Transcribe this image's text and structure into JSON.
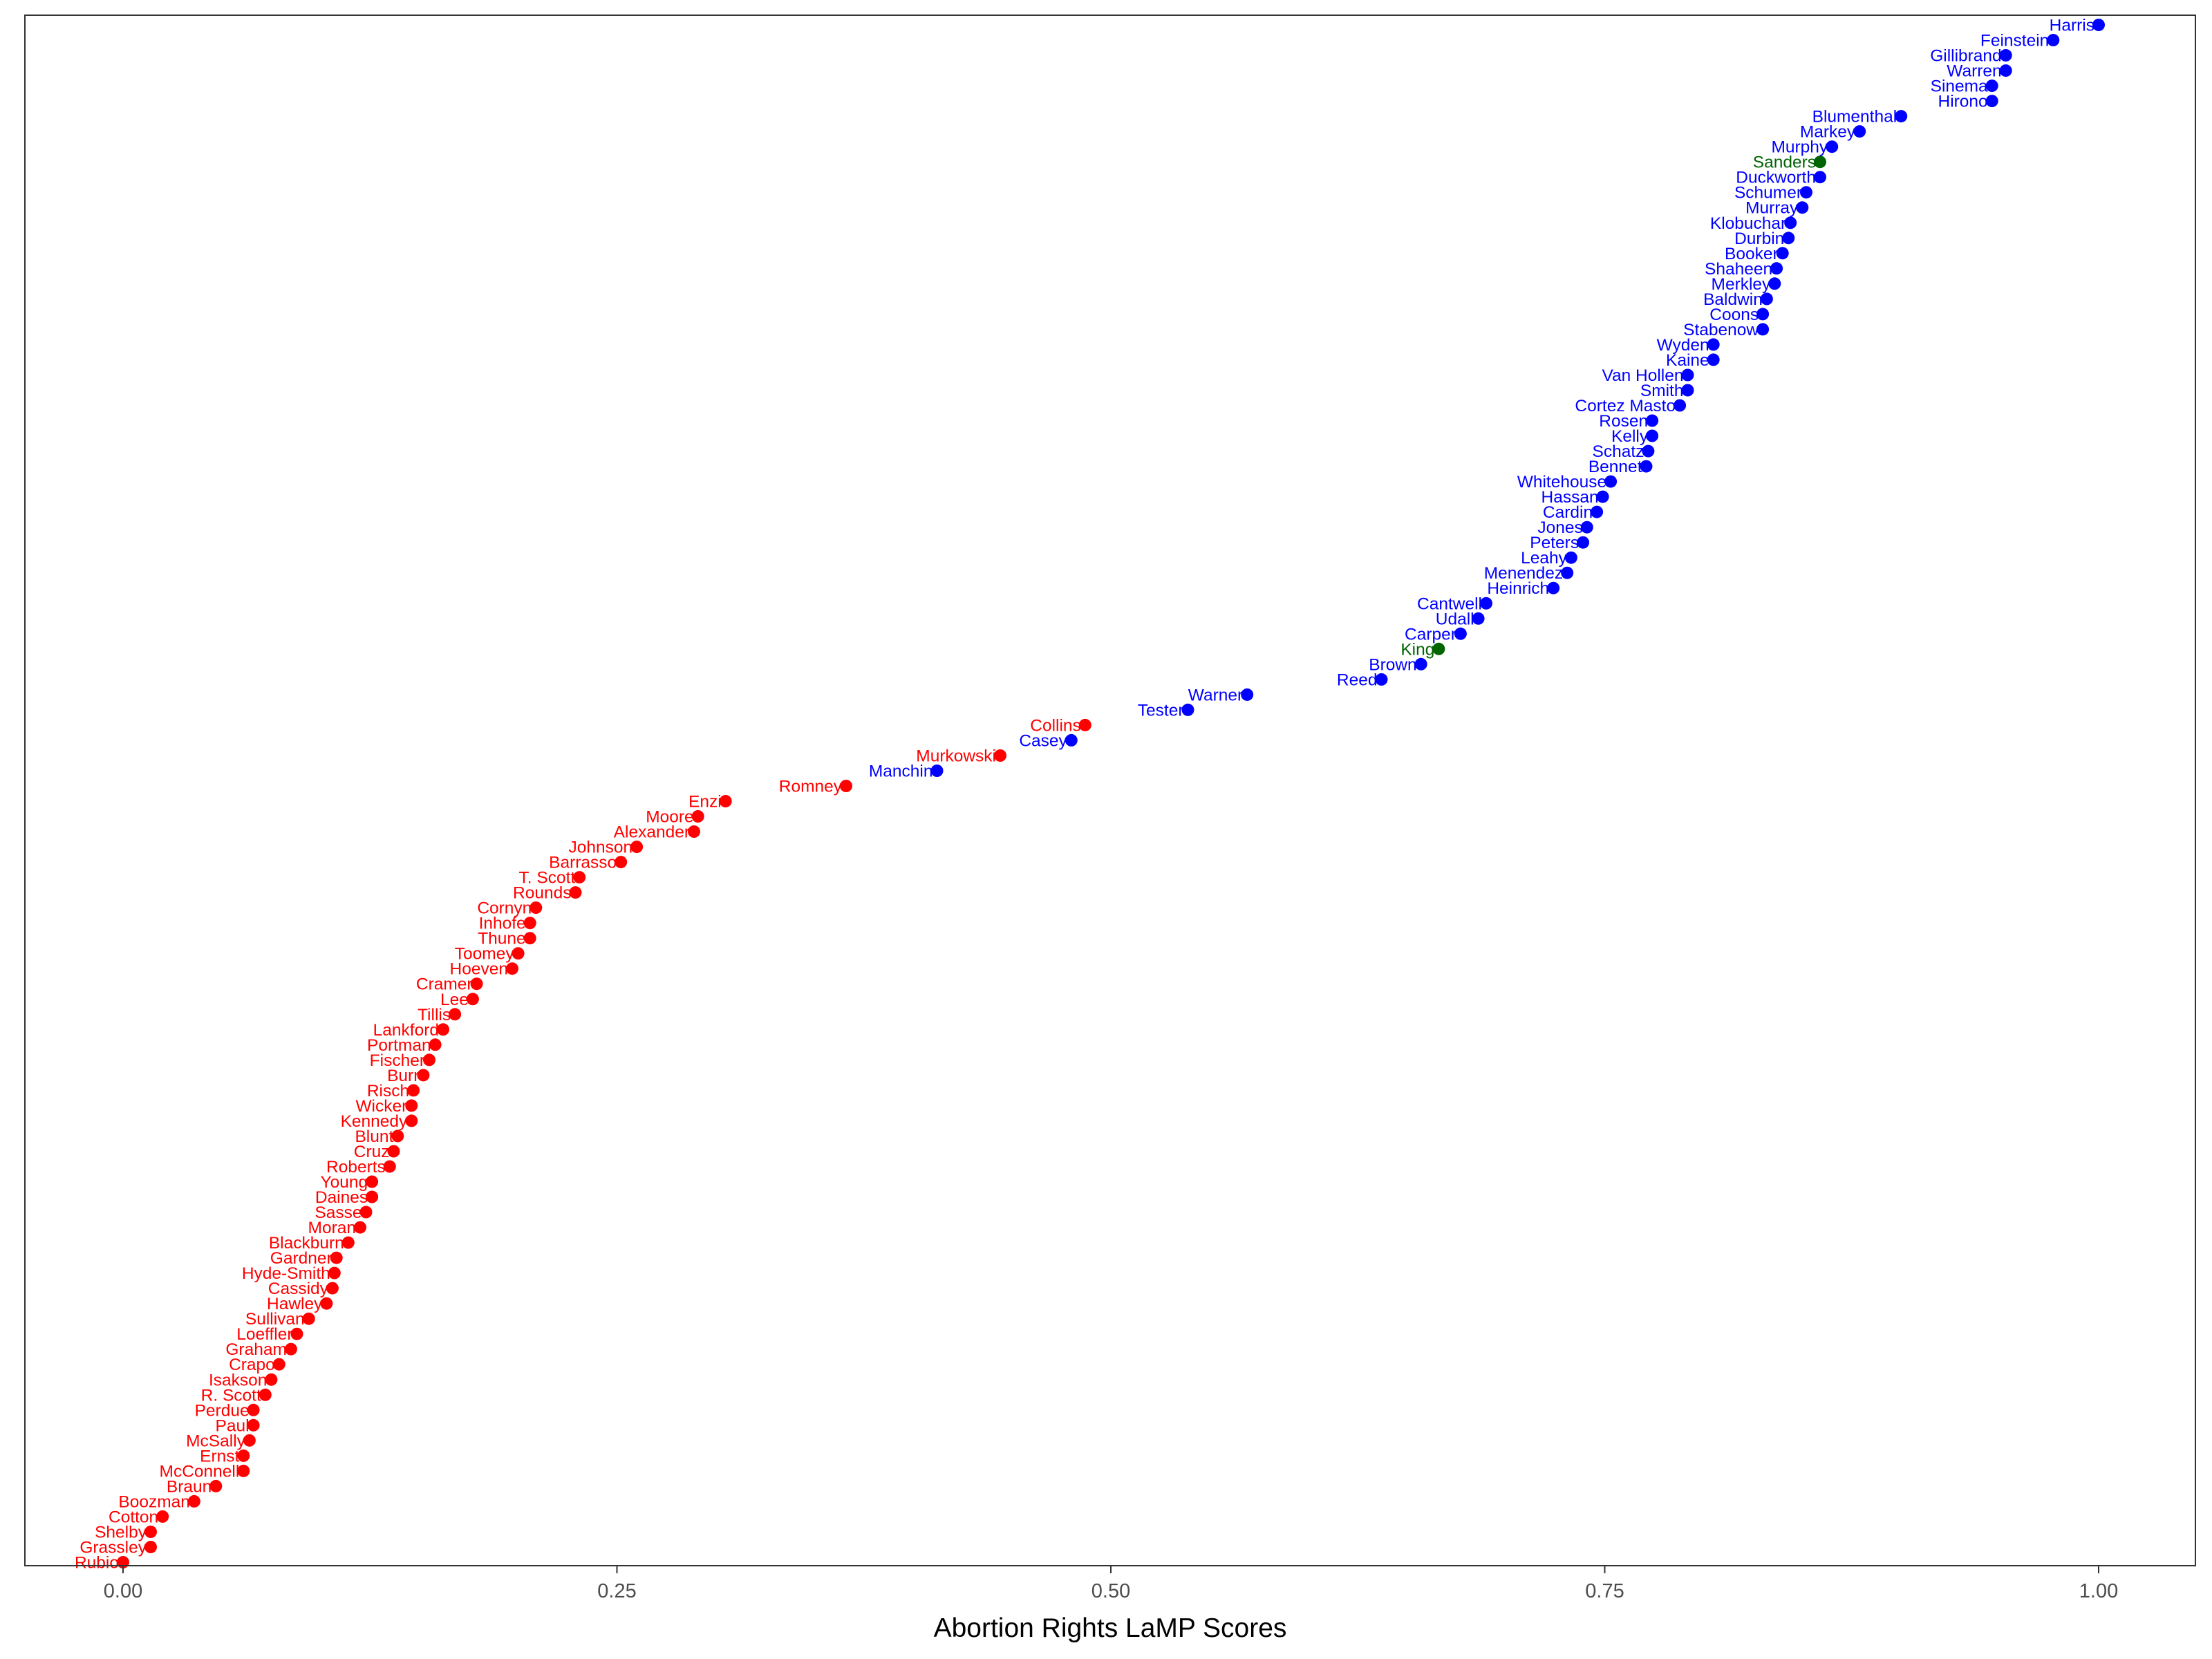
{
  "chart_data": {
    "type": "scatter",
    "xlabel": "Abortion Rights LaMP Scores",
    "xlim": [
      -0.03,
      1.05
    ],
    "xticks": [
      {
        "value": 0.0,
        "label": "0.00"
      },
      {
        "value": 0.25,
        "label": "0.25"
      },
      {
        "value": 0.5,
        "label": "0.50"
      },
      {
        "value": 0.75,
        "label": "0.75"
      },
      {
        "value": 1.0,
        "label": "1.00"
      }
    ],
    "grid": false,
    "legend": "none",
    "party_colors": {
      "D": "#0000ff",
      "R": "#ff0000",
      "I": "#006400"
    },
    "points": [
      {
        "name": "Harris",
        "x": 1.0,
        "party": "D"
      },
      {
        "name": "Feinstein",
        "x": 0.977,
        "party": "D"
      },
      {
        "name": "Gillibrand",
        "x": 0.953,
        "party": "D"
      },
      {
        "name": "Warren",
        "x": 0.953,
        "party": "D"
      },
      {
        "name": "Sinema",
        "x": 0.946,
        "party": "D"
      },
      {
        "name": "Hirono",
        "x": 0.946,
        "party": "D"
      },
      {
        "name": "Blumenthal",
        "x": 0.9,
        "party": "D"
      },
      {
        "name": "Markey",
        "x": 0.879,
        "party": "D"
      },
      {
        "name": "Murphy",
        "x": 0.865,
        "party": "D"
      },
      {
        "name": "Sanders",
        "x": 0.859,
        "party": "I"
      },
      {
        "name": "Duckworth",
        "x": 0.859,
        "party": "D"
      },
      {
        "name": "Schumer",
        "x": 0.852,
        "party": "D"
      },
      {
        "name": "Murray",
        "x": 0.85,
        "party": "D"
      },
      {
        "name": "Klobuchar",
        "x": 0.844,
        "party": "D"
      },
      {
        "name": "Durbin",
        "x": 0.843,
        "party": "D"
      },
      {
        "name": "Booker",
        "x": 0.84,
        "party": "D"
      },
      {
        "name": "Shaheen",
        "x": 0.837,
        "party": "D"
      },
      {
        "name": "Merkley",
        "x": 0.836,
        "party": "D"
      },
      {
        "name": "Baldwin",
        "x": 0.832,
        "party": "D"
      },
      {
        "name": "Coons",
        "x": 0.83,
        "party": "D"
      },
      {
        "name": "Stabenow",
        "x": 0.83,
        "party": "D"
      },
      {
        "name": "Wyden",
        "x": 0.805,
        "party": "D"
      },
      {
        "name": "Kaine",
        "x": 0.805,
        "party": "D"
      },
      {
        "name": "Van Hollen",
        "x": 0.792,
        "party": "D"
      },
      {
        "name": "Smith",
        "x": 0.792,
        "party": "D"
      },
      {
        "name": "Cortez Masto",
        "x": 0.788,
        "party": "D"
      },
      {
        "name": "Rosen",
        "x": 0.774,
        "party": "D"
      },
      {
        "name": "Kelly",
        "x": 0.774,
        "party": "D"
      },
      {
        "name": "Schatz",
        "x": 0.772,
        "party": "D"
      },
      {
        "name": "Bennet",
        "x": 0.771,
        "party": "D"
      },
      {
        "name": "Whitehouse",
        "x": 0.753,
        "party": "D"
      },
      {
        "name": "Hassan",
        "x": 0.749,
        "party": "D"
      },
      {
        "name": "Cardin",
        "x": 0.746,
        "party": "D"
      },
      {
        "name": "Jones",
        "x": 0.741,
        "party": "D"
      },
      {
        "name": "Peters",
        "x": 0.739,
        "party": "D"
      },
      {
        "name": "Leahy",
        "x": 0.733,
        "party": "D"
      },
      {
        "name": "Menendez",
        "x": 0.731,
        "party": "D"
      },
      {
        "name": "Heinrich",
        "x": 0.724,
        "party": "D"
      },
      {
        "name": "Cantwell",
        "x": 0.69,
        "party": "D"
      },
      {
        "name": "Udall",
        "x": 0.686,
        "party": "D"
      },
      {
        "name": "Carper",
        "x": 0.677,
        "party": "D"
      },
      {
        "name": "King",
        "x": 0.666,
        "party": "I"
      },
      {
        "name": "Brown",
        "x": 0.657,
        "party": "D"
      },
      {
        "name": "Reed",
        "x": 0.637,
        "party": "D"
      },
      {
        "name": "Warner",
        "x": 0.569,
        "party": "D"
      },
      {
        "name": "Tester",
        "x": 0.539,
        "party": "D"
      },
      {
        "name": "Collins",
        "x": 0.487,
        "party": "R"
      },
      {
        "name": "Casey",
        "x": 0.48,
        "party": "D"
      },
      {
        "name": "Murkowski",
        "x": 0.444,
        "party": "R"
      },
      {
        "name": "Manchin",
        "x": 0.412,
        "party": "D"
      },
      {
        "name": "Romney",
        "x": 0.366,
        "party": "R"
      },
      {
        "name": "Enzi",
        "x": 0.305,
        "party": "R"
      },
      {
        "name": "Moore",
        "x": 0.291,
        "party": "R"
      },
      {
        "name": "Alexander",
        "x": 0.289,
        "party": "R"
      },
      {
        "name": "Johnson",
        "x": 0.26,
        "party": "R"
      },
      {
        "name": "Barrasso",
        "x": 0.252,
        "party": "R"
      },
      {
        "name": "T. Scott",
        "x": 0.231,
        "party": "R"
      },
      {
        "name": "Rounds",
        "x": 0.229,
        "party": "R"
      },
      {
        "name": "Cornyn",
        "x": 0.209,
        "party": "R"
      },
      {
        "name": "Inhofe",
        "x": 0.206,
        "party": "R"
      },
      {
        "name": "Thune",
        "x": 0.206,
        "party": "R"
      },
      {
        "name": "Toomey",
        "x": 0.2,
        "party": "R"
      },
      {
        "name": "Hoeven",
        "x": 0.197,
        "party": "R"
      },
      {
        "name": "Cramer",
        "x": 0.179,
        "party": "R"
      },
      {
        "name": "Lee",
        "x": 0.177,
        "party": "R"
      },
      {
        "name": "Tillis",
        "x": 0.168,
        "party": "R"
      },
      {
        "name": "Lankford",
        "x": 0.162,
        "party": "R"
      },
      {
        "name": "Portman",
        "x": 0.158,
        "party": "R"
      },
      {
        "name": "Fischer",
        "x": 0.155,
        "party": "R"
      },
      {
        "name": "Burr",
        "x": 0.152,
        "party": "R"
      },
      {
        "name": "Risch",
        "x": 0.147,
        "party": "R"
      },
      {
        "name": "Wicker",
        "x": 0.146,
        "party": "R"
      },
      {
        "name": "Kennedy",
        "x": 0.146,
        "party": "R"
      },
      {
        "name": "Blunt",
        "x": 0.139,
        "party": "R"
      },
      {
        "name": "Cruz",
        "x": 0.137,
        "party": "R"
      },
      {
        "name": "Roberts",
        "x": 0.135,
        "party": "R"
      },
      {
        "name": "Young",
        "x": 0.126,
        "party": "R"
      },
      {
        "name": "Daines",
        "x": 0.126,
        "party": "R"
      },
      {
        "name": "Sasse",
        "x": 0.123,
        "party": "R"
      },
      {
        "name": "Moran",
        "x": 0.12,
        "party": "R"
      },
      {
        "name": "Blackburn",
        "x": 0.114,
        "party": "R"
      },
      {
        "name": "Gardner",
        "x": 0.108,
        "party": "R"
      },
      {
        "name": "Hyde-Smith",
        "x": 0.107,
        "party": "R"
      },
      {
        "name": "Cassidy",
        "x": 0.106,
        "party": "R"
      },
      {
        "name": "Hawley",
        "x": 0.103,
        "party": "R"
      },
      {
        "name": "Sullivan",
        "x": 0.094,
        "party": "R"
      },
      {
        "name": "Loeffler",
        "x": 0.088,
        "party": "R"
      },
      {
        "name": "Graham",
        "x": 0.085,
        "party": "R"
      },
      {
        "name": "Crapo",
        "x": 0.079,
        "party": "R"
      },
      {
        "name": "Isakson",
        "x": 0.075,
        "party": "R"
      },
      {
        "name": "R. Scott",
        "x": 0.072,
        "party": "R"
      },
      {
        "name": "Perdue",
        "x": 0.066,
        "party": "R"
      },
      {
        "name": "Paul",
        "x": 0.066,
        "party": "R"
      },
      {
        "name": "McSally",
        "x": 0.064,
        "party": "R"
      },
      {
        "name": "Ernst",
        "x": 0.061,
        "party": "R"
      },
      {
        "name": "McConnell",
        "x": 0.061,
        "party": "R"
      },
      {
        "name": "Braun",
        "x": 0.047,
        "party": "R"
      },
      {
        "name": "Boozman",
        "x": 0.036,
        "party": "R"
      },
      {
        "name": "Cotton",
        "x": 0.02,
        "party": "R"
      },
      {
        "name": "Shelby",
        "x": 0.014,
        "party": "R"
      },
      {
        "name": "Grassley",
        "x": 0.014,
        "party": "R"
      },
      {
        "name": "Rubio",
        "x": 0.0,
        "party": "R"
      }
    ]
  }
}
